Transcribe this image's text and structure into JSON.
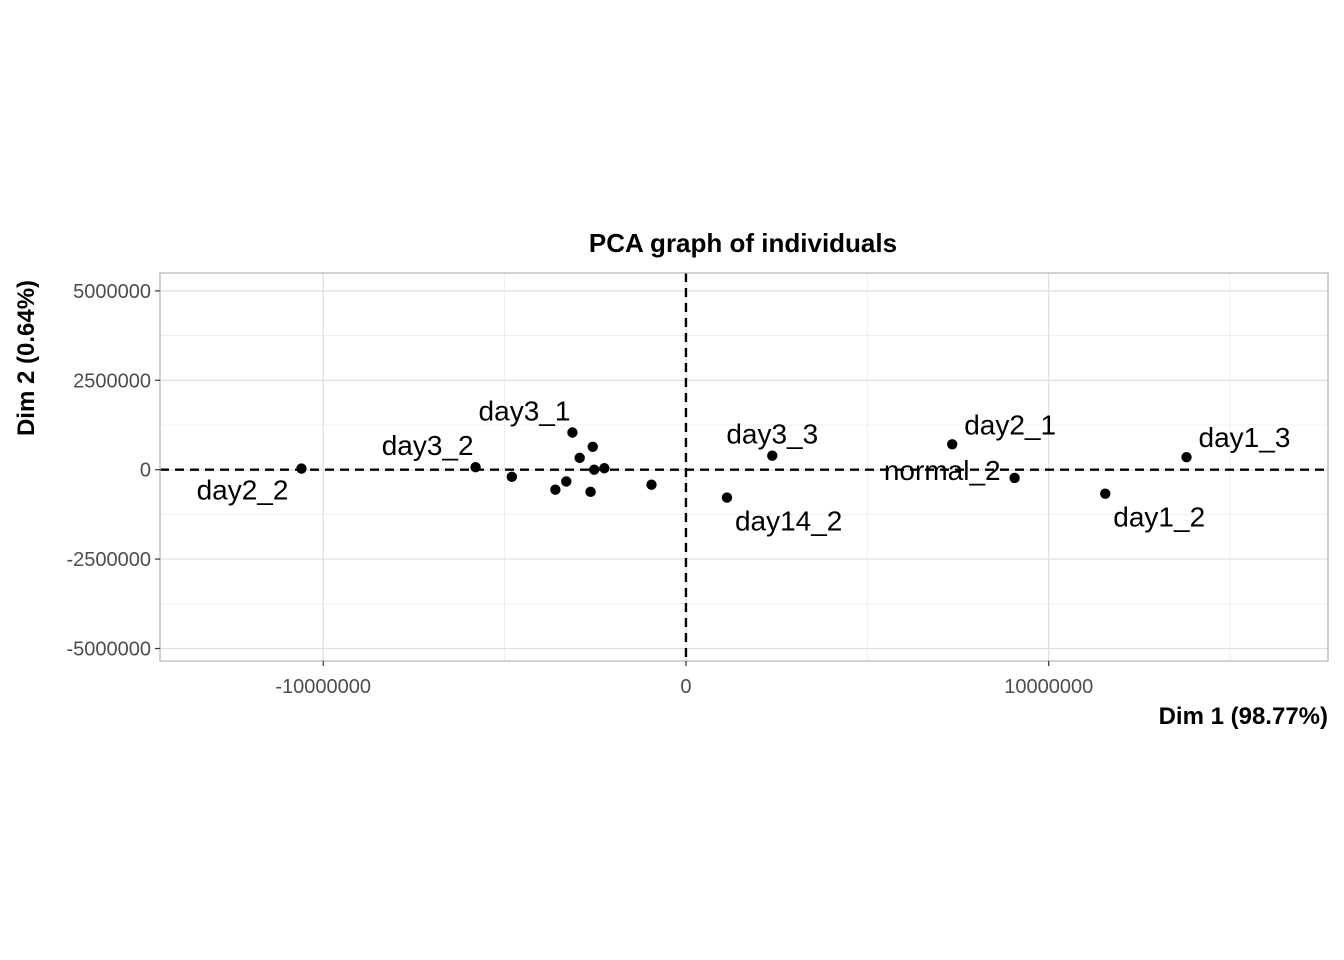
{
  "chart_data": {
    "type": "scatter",
    "title": "PCA graph of individuals",
    "xlabel": "Dim 1 (98.77%)",
    "ylabel": "Dim 2 (0.64%)",
    "xlim": [
      -14500000,
      17700000
    ],
    "ylim": [
      -5350000,
      5500000
    ],
    "x_ticks": [
      -10000000,
      0,
      10000000
    ],
    "x_tick_labels": [
      "-10000000",
      "0",
      "10000000"
    ],
    "y_ticks": [
      -5000000,
      -2500000,
      0,
      2500000,
      5000000
    ],
    "y_tick_labels": [
      "-5000000",
      "-2500000",
      "0",
      "2500000",
      "5000000"
    ],
    "grid": true,
    "reference_lines": {
      "x": 0,
      "y": 0,
      "style": "dashed"
    },
    "point_color": "#000000",
    "points": [
      {
        "x": -10600000,
        "y": 30000,
        "label": "day2_2",
        "label_pos": "bottom-left"
      },
      {
        "x": -5800000,
        "y": 70000,
        "label": "day3_2",
        "label_pos": "top-left"
      },
      {
        "x": -4800000,
        "y": -200000,
        "label": ""
      },
      {
        "x": -3600000,
        "y": -560000,
        "label": ""
      },
      {
        "x": -3300000,
        "y": -330000,
        "label": ""
      },
      {
        "x": -3130000,
        "y": 1040000,
        "label": "day3_1",
        "label_pos": "top-left"
      },
      {
        "x": -2930000,
        "y": 330000,
        "label": ""
      },
      {
        "x": -2630000,
        "y": -620000,
        "label": ""
      },
      {
        "x": -2570000,
        "y": 640000,
        "label": ""
      },
      {
        "x": -2530000,
        "y": 0,
        "label": ""
      },
      {
        "x": -2250000,
        "y": 40000,
        "label": ""
      },
      {
        "x": -950000,
        "y": -420000,
        "label": ""
      },
      {
        "x": 1130000,
        "y": -780000,
        "label": "day14_2",
        "label_pos": "bottom-right"
      },
      {
        "x": 2380000,
        "y": 390000,
        "label": "day3_3",
        "label_pos": "top"
      },
      {
        "x": 7340000,
        "y": 710000,
        "label": "day2_1",
        "label_pos": "top-right"
      },
      {
        "x": 9060000,
        "y": -230000,
        "label": "normal_2",
        "label_pos": "left"
      },
      {
        "x": 11560000,
        "y": -670000,
        "label": "day1_2",
        "label_pos": "bottom-right"
      },
      {
        "x": 13800000,
        "y": 350000,
        "label": "day1_3",
        "label_pos": "top-right"
      }
    ]
  }
}
